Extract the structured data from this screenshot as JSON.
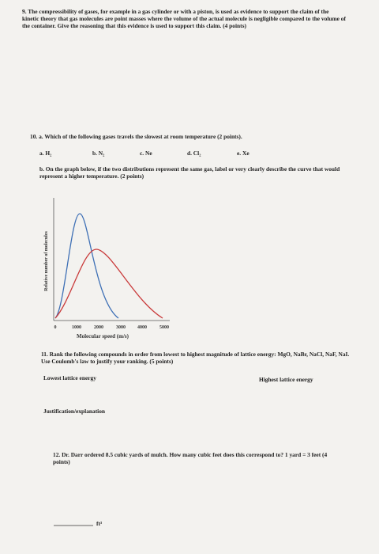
{
  "q9": {
    "text": "9. The compressibility of gases, for example in a gas cylinder or with a piston, is used as evidence to support the claim of the kinetic theory that gas molecules are point masses where the volume of the actual molecule is negligible compared to the volume of the container. Give the reasoning that this evidence is used to support this claim. (4 points)"
  },
  "q10": {
    "a": "10. a. Which of the following gases travels the slowest at room temperature (2 points).",
    "options": [
      "a. H₂",
      "b. N₂",
      "c. Ne",
      "d. Cl₂",
      "e. Xe"
    ],
    "b": "b. On the graph below, if the two distributions represent the same gas, label or very clearly describe the curve that would represent a higher temperature. (2 points)",
    "graph": {
      "y_label": "Relative number of molecules",
      "x_label": "Molecular speed (m/s)",
      "x_tick_labels": [
        "0",
        "1000",
        "2000",
        "3000",
        "4000",
        "5000"
      ]
    }
  },
  "q11": {
    "text": "11. Rank the following compounds in order from lowest to highest magnitude of lattice energy: MgO, NaBr, NaCl, NaF, NaI. Use Coulomb's law to justify your ranking. (5 points)",
    "lowest": "Lowest lattice energy",
    "highest": "Highest lattice energy",
    "justification": "Justification/explanation"
  },
  "q12": {
    "text": "12. Dr. Darr ordered 8.5 cubic yards of mulch. How many cubic feet does this correspond to? 1 yard = 3 feet (4 points)",
    "unit": "ft³"
  }
}
